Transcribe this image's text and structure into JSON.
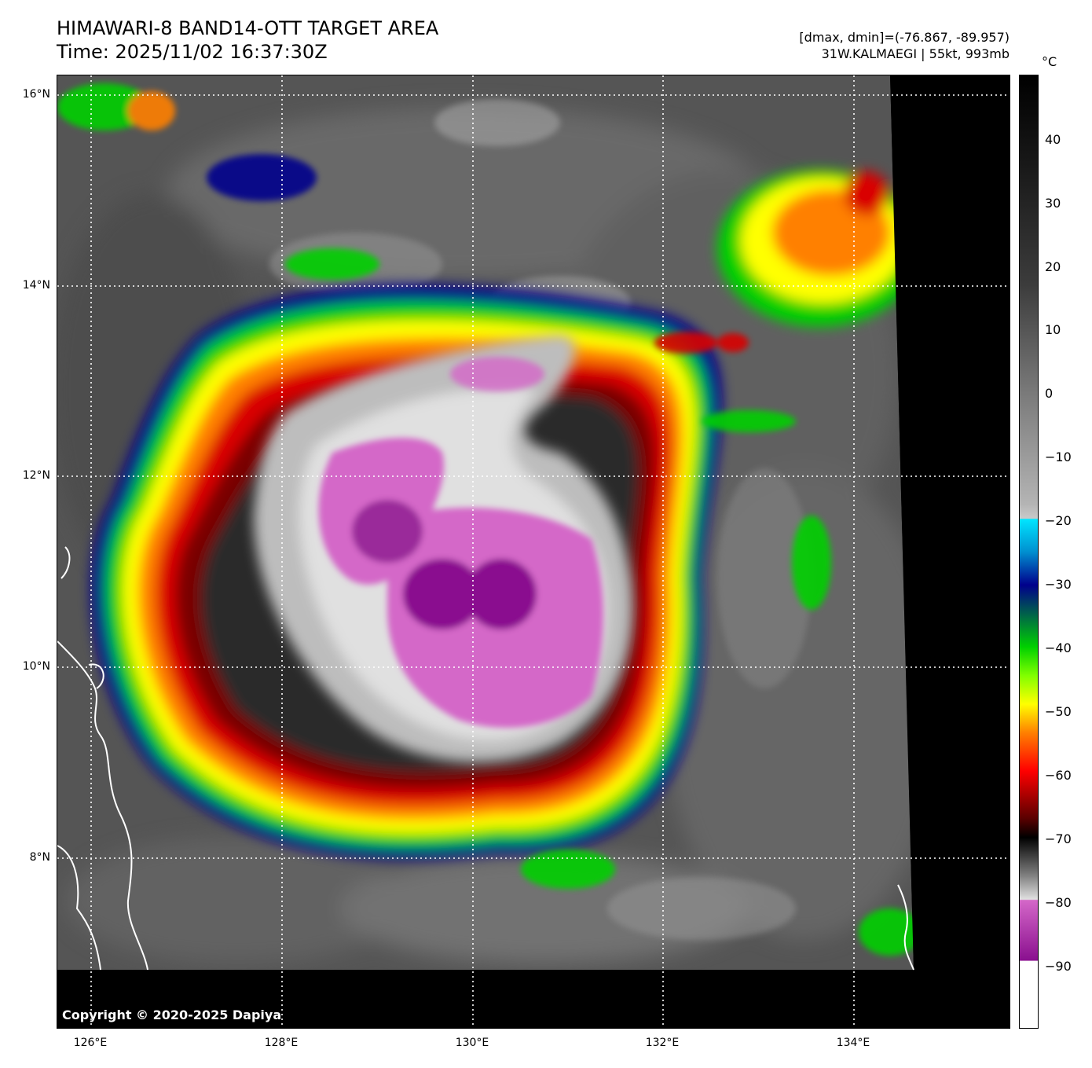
{
  "header": {
    "title": "HIMAWARI-8 BAND14-OTT TARGET AREA",
    "time": "Time: 2025/11/02 16:37:30Z",
    "range": "[dmax, dmin]=(-76.867, -89.957)",
    "storm": "31W.KALMAEGI | 55kt, 993mb"
  },
  "map": {
    "lat_labels": [
      {
        "text": "16°N",
        "value": 16
      },
      {
        "text": "14°N",
        "value": 14
      },
      {
        "text": "12°N",
        "value": 12
      },
      {
        "text": "10°N",
        "value": 10
      },
      {
        "text": "8°N",
        "value": 8
      }
    ],
    "lon_labels": [
      {
        "text": "126°E",
        "value": 126
      },
      {
        "text": "128°E",
        "value": 128
      },
      {
        "text": "130°E",
        "value": 130
      },
      {
        "text": "132°E",
        "value": 132
      },
      {
        "text": "134°E",
        "value": 134
      }
    ],
    "grid": "dotted",
    "copyright": "Copyright © 2020-2025 Dapiya"
  },
  "colorbar": {
    "unit": "°C",
    "ticks": [
      {
        "text": "40",
        "value": 40
      },
      {
        "text": "30",
        "value": 30
      },
      {
        "text": "20",
        "value": 20
      },
      {
        "text": "10",
        "value": 10
      },
      {
        "text": "0",
        "value": 0
      },
      {
        "text": "−10",
        "value": -10
      },
      {
        "text": "−20",
        "value": -20
      },
      {
        "text": "−30",
        "value": -30
      },
      {
        "text": "−40",
        "value": -40
      },
      {
        "text": "−50",
        "value": -50
      },
      {
        "text": "−60",
        "value": -60
      },
      {
        "text": "−70",
        "value": -70
      },
      {
        "text": "−80",
        "value": -80
      },
      {
        "text": "−90",
        "value": -90
      }
    ],
    "range": [
      -100,
      50
    ]
  },
  "colors": {
    "cold_top": "#d467c8",
    "deep_purple": "#8a108f",
    "red_band": "#d90000",
    "dark_red": "#5a0000",
    "orange": "#ff8000",
    "yellow": "#ffff00",
    "green": "#00d000",
    "blue": "#00008c",
    "cyan": "#00e5ff",
    "gray_cloud": "#8c8c8c",
    "background_gray": "#4a4a4a",
    "no_data": "#000000",
    "coastline": "#ffffff"
  }
}
